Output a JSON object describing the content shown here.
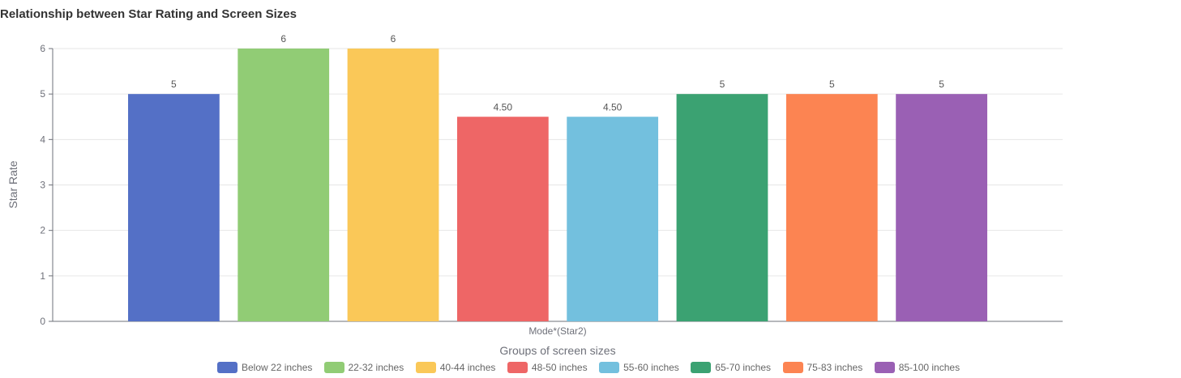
{
  "chart_data": {
    "type": "bar",
    "title": "Relationship between Star Rating and Screen Sizes",
    "xlabel": "Groups of screen sizes",
    "ylabel": "Star Rate",
    "categories": [
      "Mode*(Star2)"
    ],
    "ylim": [
      0,
      6
    ],
    "yticks": [
      "0",
      "1",
      "2",
      "3",
      "4",
      "5",
      "6"
    ],
    "grid": true,
    "legend_position": "bottom",
    "series": [
      {
        "name": "Below 22 inches",
        "values": [
          5
        ],
        "label": "5",
        "color": "#5470c6"
      },
      {
        "name": "22-32 inches",
        "values": [
          6
        ],
        "label": "6",
        "color": "#91cc75"
      },
      {
        "name": "40-44 inches",
        "values": [
          6
        ],
        "label": "6",
        "color": "#fac858"
      },
      {
        "name": "48-50 inches",
        "values": [
          4.5
        ],
        "label": "4.50",
        "color": "#ee6666"
      },
      {
        "name": "55-60 inches",
        "values": [
          4.5
        ],
        "label": "4.50",
        "color": "#73c0de"
      },
      {
        "name": "65-70 inches",
        "values": [
          5
        ],
        "label": "5",
        "color": "#3ba272"
      },
      {
        "name": "75-83 inches",
        "values": [
          5
        ],
        "label": "5",
        "color": "#fc8452"
      },
      {
        "name": "85-100 inches",
        "values": [
          5
        ],
        "label": "5",
        "color": "#9a60b4"
      }
    ]
  }
}
